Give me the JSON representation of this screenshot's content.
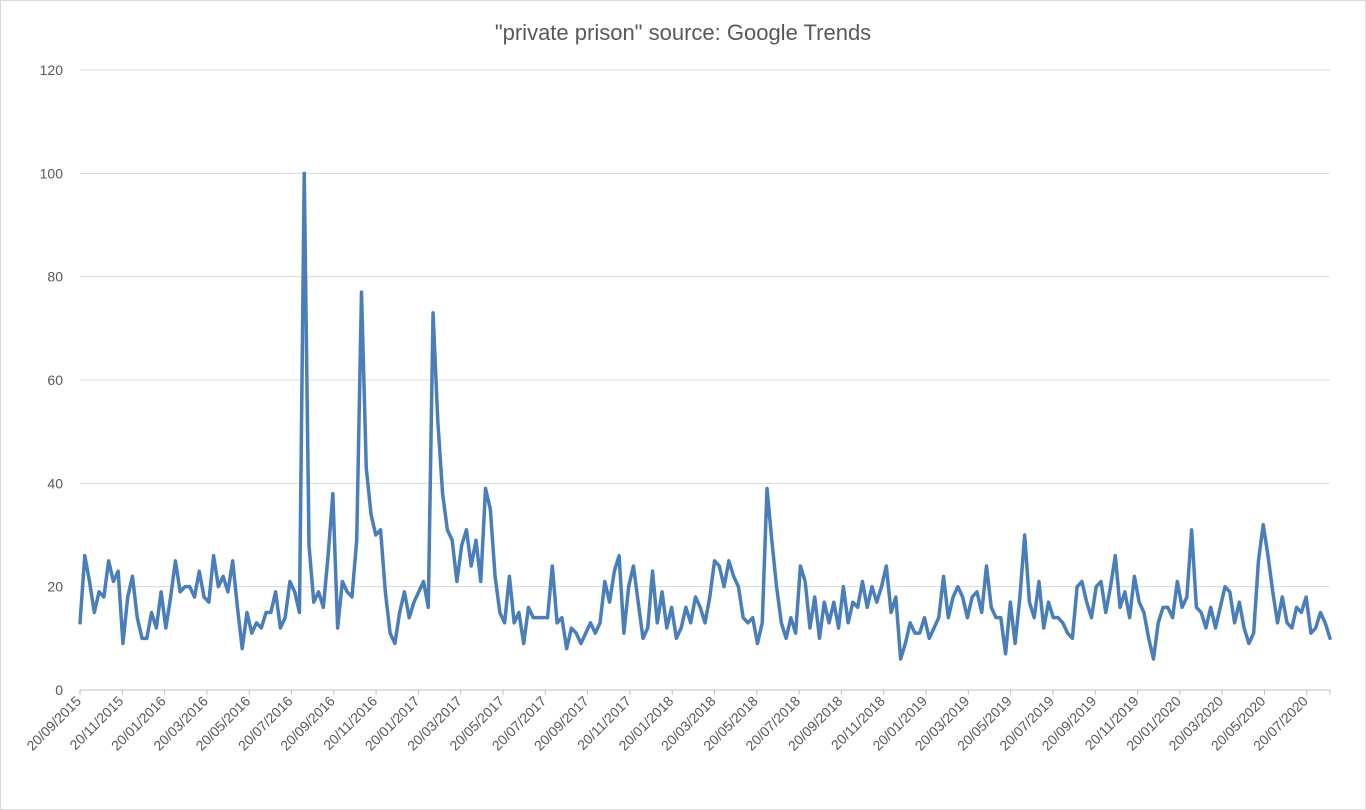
{
  "chart_data": {
    "type": "line",
    "title": "\"private prison\" source: Google Trends",
    "xlabel": "",
    "ylabel": "",
    "ylim": [
      0,
      120
    ],
    "yticks": [
      0,
      20,
      40,
      60,
      80,
      100,
      120
    ],
    "grid": true,
    "legend": "none",
    "x_tick_labels": [
      "20/09/2015",
      "20/11/2015",
      "20/01/2016",
      "20/03/2016",
      "20/05/2016",
      "20/07/2016",
      "20/09/2016",
      "20/11/2016",
      "20/01/2017",
      "20/03/2017",
      "20/05/2017",
      "20/07/2017",
      "20/09/2017",
      "20/11/2017",
      "20/01/2018",
      "20/03/2018",
      "20/05/2018",
      "20/07/2018",
      "20/09/2018",
      "20/11/2018",
      "20/01/2019",
      "20/03/2019",
      "20/05/2019",
      "20/07/2019",
      "20/09/2019",
      "20/11/2019",
      "20/01/2020",
      "20/03/2020",
      "20/05/2020",
      "20/07/2020"
    ],
    "line_color": "#4a7ebb",
    "series": [
      {
        "values": [
          13,
          26,
          21,
          15,
          19,
          18,
          25,
          21,
          23,
          9,
          18,
          22,
          14,
          10,
          10,
          15,
          12,
          19,
          12,
          18,
          25,
          19,
          20,
          20,
          18,
          23,
          18,
          17,
          26,
          20,
          22,
          19,
          25,
          16,
          8,
          15,
          11,
          13,
          12,
          15,
          15,
          19,
          12,
          14,
          21,
          19,
          15,
          100,
          28,
          17,
          19,
          16,
          26,
          38,
          12,
          21,
          19,
          18,
          29,
          77,
          43,
          34,
          30,
          31,
          19,
          11,
          9,
          15,
          19,
          14,
          17,
          19,
          21,
          16,
          73,
          52,
          38,
          31,
          29,
          21,
          28,
          31,
          24,
          29,
          21,
          39,
          35,
          22,
          15,
          13,
          22,
          13,
          15,
          9,
          16,
          14,
          14,
          14,
          14,
          24,
          13,
          14,
          8,
          12,
          11,
          9,
          11,
          13,
          11,
          13,
          21,
          17,
          23,
          26,
          11,
          20,
          24,
          17,
          10,
          12,
          23,
          13,
          19,
          12,
          16,
          10,
          12,
          16,
          13,
          18,
          16,
          13,
          18,
          25,
          24,
          20,
          25,
          22,
          20,
          14,
          13,
          14,
          9,
          13,
          39,
          29,
          20,
          13,
          10,
          14,
          11,
          24,
          21,
          12,
          18,
          10,
          17,
          13,
          17,
          12,
          20,
          13,
          17,
          16,
          21,
          16,
          20,
          17,
          20,
          24,
          15,
          18,
          6,
          9,
          13,
          11,
          11,
          14,
          10,
          12,
          14,
          22,
          14,
          18,
          20,
          18,
          14,
          18,
          19,
          15,
          24,
          16,
          14,
          14,
          7,
          17,
          9,
          18,
          30,
          17,
          14,
          21,
          12,
          17,
          14,
          14,
          13,
          11,
          10,
          20,
          21,
          17,
          14,
          20,
          21,
          15,
          20,
          26,
          16,
          19,
          14,
          22,
          17,
          15,
          10,
          6,
          13,
          16,
          16,
          14,
          21,
          16,
          18,
          31,
          16,
          15,
          12,
          16,
          12,
          16,
          20,
          19,
          13,
          17,
          12,
          9,
          11,
          25,
          32,
          26,
          19,
          13,
          18,
          13,
          12,
          16,
          15,
          18,
          11,
          12,
          15,
          13,
          10
        ]
      }
    ]
  }
}
